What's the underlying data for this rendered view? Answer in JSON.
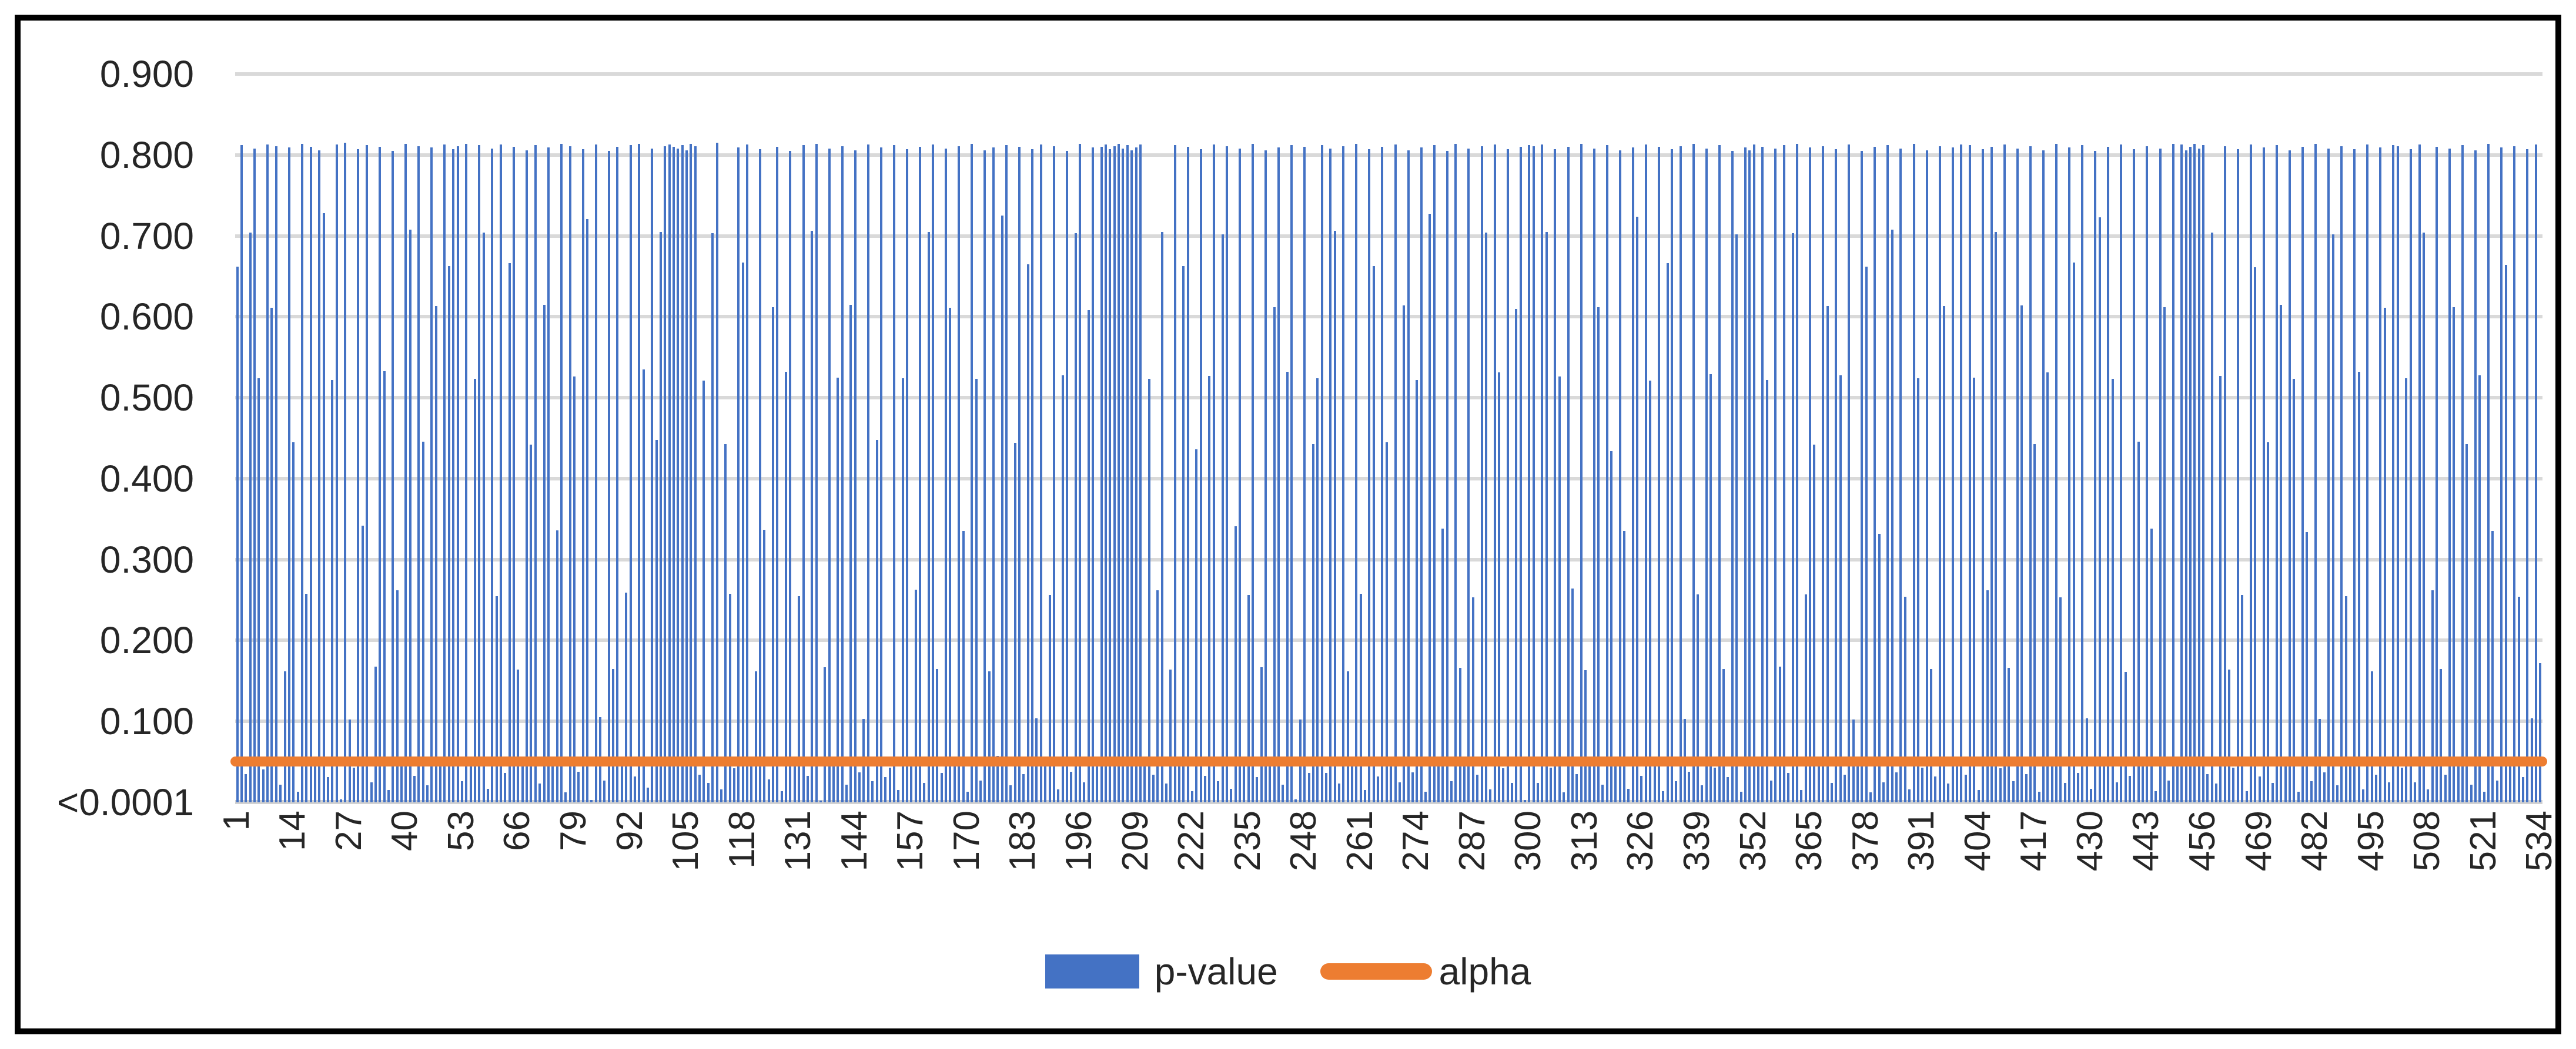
{
  "chart_data": {
    "type": "bar",
    "title": "",
    "n_points": 534,
    "ylim": [
      0,
      0.9
    ],
    "grid": true,
    "legend_position": "bottom",
    "y_ticks": [
      {
        "label": "<0.0001",
        "value": 0
      },
      {
        "label": "0.100",
        "value": 0.1
      },
      {
        "label": "0.200",
        "value": 0.2
      },
      {
        "label": "0.300",
        "value": 0.3
      },
      {
        "label": "0.400",
        "value": 0.4
      },
      {
        "label": "0.500",
        "value": 0.5
      },
      {
        "label": "0.600",
        "value": 0.6
      },
      {
        "label": "0.700",
        "value": 0.7
      },
      {
        "label": "0.800",
        "value": 0.8
      },
      {
        "label": "0.900",
        "value": 0.9
      }
    ],
    "x_ticks": [
      "1",
      "14",
      "27",
      "40",
      "53",
      "66",
      "79",
      "92",
      "105",
      "118",
      "131",
      "144",
      "157",
      "170",
      "183",
      "196",
      "209",
      "222",
      "235",
      "248",
      "261",
      "274",
      "287",
      "300",
      "313",
      "326",
      "339",
      "352",
      "365",
      "378",
      "391",
      "404",
      "417",
      "430",
      "443",
      "456",
      "469",
      "482",
      "495",
      "508",
      "521",
      "534"
    ],
    "series": [
      {
        "name": "p-value",
        "type": "bar",
        "color": "#4472C4",
        "values": [
          0.662,
          0.812,
          0.035,
          0.704,
          0.808,
          0.524,
          0.041,
          0.813,
          0.611,
          0.811,
          0.022,
          0.162,
          0.809,
          0.445,
          0.013,
          0.814,
          0.258,
          0.81,
          0.052,
          0.806,
          0.728,
          0.031,
          0.522,
          0.813,
          0.004,
          0.815,
          0.102,
          0.043,
          0.807,
          0.342,
          0.812,
          0.025,
          0.168,
          0.81,
          0.533,
          0.015,
          0.805,
          0.262,
          0.056,
          0.814,
          0.708,
          0.033,
          0.811,
          0.446,
          0.021,
          0.809,
          0.613,
          0.044,
          0.813,
          0.663,
          0.807,
          0.811,
          0.026,
          0.814,
          0.045,
          0.523,
          0.812,
          0.704,
          0.017,
          0.808,
          0.255,
          0.813,
          0.036,
          0.666,
          0.81,
          0.164,
          0.048,
          0.806,
          0.442,
          0.812,
          0.023,
          0.615,
          0.809,
          0.053,
          0.336,
          0.814,
          0.012,
          0.811,
          0.526,
          0.038,
          0.807,
          0.721,
          0.003,
          0.813,
          0.105,
          0.027,
          0.805,
          0.165,
          0.81,
          0.046,
          0.259,
          0.812,
          0.032,
          0.814,
          0.535,
          0.018,
          0.808,
          0.448,
          0.705,
          0.811,
          0.813,
          0.81,
          0.808,
          0.812,
          0.806,
          0.814,
          0.811,
          0.034,
          0.521,
          0.024,
          0.703,
          0.815,
          0.016,
          0.443,
          0.258,
          0.042,
          0.809,
          0.667,
          0.813,
          0.054,
          0.162,
          0.807,
          0.337,
          0.028,
          0.612,
          0.81,
          0.014,
          0.532,
          0.805,
          0.047,
          0.255,
          0.812,
          0.033,
          0.706,
          0.814,
          0.002,
          0.167,
          0.808,
          0.044,
          0.525,
          0.811,
          0.022,
          0.615,
          0.806,
          0.037,
          0.103,
          0.813,
          0.026,
          0.448,
          0.809,
          0.031,
          0.043,
          0.812,
          0.015,
          0.524,
          0.807,
          0.052,
          0.263,
          0.81,
          0.024,
          0.705,
          0.813,
          0.165,
          0.036,
          0.808,
          0.611,
          0.046,
          0.811,
          0.335,
          0.013,
          0.814,
          0.523,
          0.027,
          0.806,
          0.162,
          0.809,
          0.057,
          0.725,
          0.812,
          0.021,
          0.444,
          0.81,
          0.035,
          0.665,
          0.807,
          0.104,
          0.813,
          0.044,
          0.256,
          0.811,
          0.016,
          0.528,
          0.805,
          0.038,
          0.703,
          0.814,
          0.025,
          0.608,
          0.809,
          0.047,
          0.81,
          0.813,
          0.807,
          0.811,
          0.814,
          0.808,
          0.812,
          0.806,
          0.809,
          0.813,
          0.052,
          0.523,
          0.034,
          0.262,
          0.705,
          0.023,
          0.164,
          0.812,
          0.045,
          0.663,
          0.81,
          0.014,
          0.436,
          0.807,
          0.033,
          0.527,
          0.813,
          0.026,
          0.702,
          0.811,
          0.017,
          0.341,
          0.808,
          0.044,
          0.256,
          0.814,
          0.031,
          0.167,
          0.806,
          0.053,
          0.612,
          0.809,
          0.022,
          0.532,
          0.812,
          0.004,
          0.102,
          0.81,
          0.036,
          0.443,
          0.524,
          0.812,
          0.036,
          0.808,
          0.706,
          0.023,
          0.811,
          0.162,
          0.047,
          0.814,
          0.258,
          0.015,
          0.807,
          0.663,
          0.032,
          0.81,
          0.445,
          0.053,
          0.813,
          0.025,
          0.614,
          0.806,
          0.037,
          0.522,
          0.809,
          0.013,
          0.727,
          0.812,
          0.044,
          0.338,
          0.805,
          0.026,
          0.814,
          0.166,
          0.051,
          0.808,
          0.253,
          0.034,
          0.811,
          0.704,
          0.016,
          0.813,
          0.531,
          0.042,
          0.807,
          0.024,
          0.61,
          0.81,
          0.003,
          0.812,
          0.811,
          0.024,
          0.813,
          0.705,
          0.043,
          0.807,
          0.526,
          0.012,
          0.81,
          0.264,
          0.035,
          0.814,
          0.163,
          0.046,
          0.808,
          0.612,
          0.022,
          0.812,
          0.434,
          0.054,
          0.806,
          0.335,
          0.017,
          0.809,
          0.724,
          0.033,
          0.813,
          0.521,
          0.045,
          0.81,
          0.014,
          0.666,
          0.807,
          0.026,
          0.811,
          0.103,
          0.038,
          0.814,
          0.257,
          0.021,
          0.808,
          0.529,
          0.043,
          0.812,
          0.165,
          0.031,
          0.805,
          0.702,
          0.013,
          0.809,
          0.806,
          0.813,
          0.045,
          0.81,
          0.522,
          0.027,
          0.808,
          0.168,
          0.812,
          0.036,
          0.703,
          0.814,
          0.015,
          0.257,
          0.809,
          0.442,
          0.053,
          0.811,
          0.613,
          0.024,
          0.807,
          0.528,
          0.034,
          0.813,
          0.102,
          0.046,
          0.805,
          0.662,
          0.012,
          0.81,
          0.332,
          0.025,
          0.812,
          0.708,
          0.037,
          0.808,
          0.254,
          0.016,
          0.814,
          0.524,
          0.043,
          0.806,
          0.165,
          0.032,
          0.811,
          0.613,
          0.023,
          0.809,
          0.044,
          0.813,
          0.034,
          0.812,
          0.525,
          0.015,
          0.807,
          0.262,
          0.81,
          0.705,
          0.042,
          0.813,
          0.166,
          0.026,
          0.808,
          0.614,
          0.035,
          0.811,
          0.443,
          0.013,
          0.806,
          0.531,
          0.047,
          0.814,
          0.253,
          0.024,
          0.809,
          0.667,
          0.036,
          0.812,
          0.104,
          0.017,
          0.805,
          0.723,
          0.044,
          0.81,
          0.523,
          0.025,
          0.813,
          0.161,
          0.033,
          0.807,
          0.446,
          0.052,
          0.811,
          0.338,
          0.014,
          0.808,
          0.612,
          0.027,
          0.814,
          0.045,
          0.813,
          0.806,
          0.81,
          0.814,
          0.808,
          0.812,
          0.035,
          0.704,
          0.023,
          0.527,
          0.811,
          0.164,
          0.043,
          0.807,
          0.256,
          0.014,
          0.813,
          0.661,
          0.032,
          0.809,
          0.445,
          0.024,
          0.812,
          0.615,
          0.046,
          0.806,
          0.523,
          0.013,
          0.81,
          0.334,
          0.026,
          0.814,
          0.103,
          0.037,
          0.808,
          0.702,
          0.021,
          0.811,
          0.255,
          0.044,
          0.807,
          0.532,
          0.016,
          0.813,
          0.162,
          0.034,
          0.809,
          0.611,
          0.025,
          0.812,
          0.811,
          0.043,
          0.524,
          0.807,
          0.025,
          0.813,
          0.704,
          0.016,
          0.262,
          0.81,
          0.165,
          0.034,
          0.808,
          0.612,
          0.046,
          0.812,
          0.443,
          0.022,
          0.806,
          0.528,
          0.013,
          0.814,
          0.335,
          0.027,
          0.809,
          0.664,
          0.045,
          0.811,
          0.254,
          0.031,
          0.807,
          0.104,
          0.813,
          0.172
        ]
      },
      {
        "name": "alpha",
        "type": "line",
        "color": "#ED7D31",
        "value": 0.05
      }
    ]
  },
  "legend": {
    "items": [
      {
        "label": "p-value",
        "swatch": "bar",
        "color": "#4472C4"
      },
      {
        "label": "alpha",
        "swatch": "line",
        "color": "#ED7D31"
      }
    ]
  },
  "colors": {
    "bar": "#4472C4",
    "alpha_line": "#ED7D31",
    "gridline": "#D9D9D9",
    "text": "#262626",
    "background": "#FFFFFF",
    "border": "#000000"
  }
}
